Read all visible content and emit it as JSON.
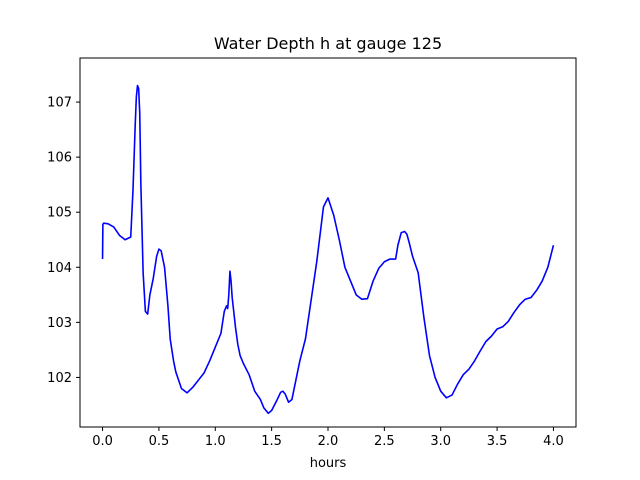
{
  "chart_data": {
    "type": "line",
    "title": "Water Depth h at gauge 125",
    "xlabel": "hours",
    "ylabel": "",
    "xlim": [
      -0.2,
      4.2
    ],
    "ylim": [
      101.1,
      107.8
    ],
    "x_ticks": [
      0.0,
      0.5,
      1.0,
      1.5,
      2.0,
      2.5,
      3.0,
      3.5,
      4.0
    ],
    "x_tick_labels": [
      "0.0",
      "0.5",
      "1.0",
      "1.5",
      "2.0",
      "2.5",
      "3.0",
      "3.5",
      "4.0"
    ],
    "y_ticks": [
      102,
      103,
      104,
      105,
      106,
      107
    ],
    "y_tick_labels": [
      "102",
      "103",
      "104",
      "105",
      "106",
      "107"
    ],
    "grid": false,
    "legend": "none",
    "series": [
      {
        "color": "#0000ff",
        "x": [
          0.0,
          0.003,
          0.01,
          0.05,
          0.1,
          0.15,
          0.2,
          0.25,
          0.27,
          0.29,
          0.3,
          0.31,
          0.32,
          0.33,
          0.34,
          0.36,
          0.38,
          0.4,
          0.42,
          0.45,
          0.48,
          0.5,
          0.52,
          0.55,
          0.58,
          0.6,
          0.63,
          0.65,
          0.7,
          0.75,
          0.8,
          0.85,
          0.9,
          0.95,
          1.0,
          1.05,
          1.08,
          1.1,
          1.11,
          1.12,
          1.13,
          1.14,
          1.15,
          1.18,
          1.2,
          1.22,
          1.25,
          1.3,
          1.35,
          1.4,
          1.43,
          1.45,
          1.47,
          1.5,
          1.55,
          1.58,
          1.6,
          1.62,
          1.65,
          1.68,
          1.7,
          1.75,
          1.8,
          1.85,
          1.9,
          1.93,
          1.96,
          2.0,
          2.05,
          2.1,
          2.15,
          2.2,
          2.25,
          2.3,
          2.35,
          2.4,
          2.45,
          2.5,
          2.55,
          2.58,
          2.6,
          2.62,
          2.65,
          2.68,
          2.7,
          2.72,
          2.75,
          2.8,
          2.85,
          2.9,
          2.95,
          3.0,
          3.05,
          3.1,
          3.15,
          3.2,
          3.25,
          3.3,
          3.35,
          3.4,
          3.45,
          3.5,
          3.55,
          3.6,
          3.65,
          3.7,
          3.75,
          3.8,
          3.85,
          3.9,
          3.95,
          4.0
        ],
        "y": [
          104.15,
          104.78,
          104.8,
          104.79,
          104.73,
          104.58,
          104.5,
          104.55,
          105.4,
          106.6,
          107.1,
          107.3,
          107.25,
          106.8,
          105.5,
          103.9,
          103.2,
          103.15,
          103.5,
          103.8,
          104.2,
          104.33,
          104.3,
          104.0,
          103.3,
          102.7,
          102.3,
          102.1,
          101.8,
          101.72,
          101.82,
          101.95,
          102.08,
          102.3,
          102.55,
          102.8,
          103.2,
          103.3,
          103.25,
          103.5,
          103.93,
          103.75,
          103.45,
          102.9,
          102.6,
          102.4,
          102.25,
          102.05,
          101.75,
          101.6,
          101.45,
          101.4,
          101.35,
          101.4,
          101.6,
          101.73,
          101.75,
          101.7,
          101.55,
          101.6,
          101.8,
          102.3,
          102.7,
          103.4,
          104.1,
          104.6,
          105.1,
          105.26,
          104.95,
          104.5,
          104.0,
          103.75,
          103.5,
          103.42,
          103.43,
          103.75,
          103.98,
          104.1,
          104.15,
          104.15,
          104.15,
          104.4,
          104.63,
          104.65,
          104.6,
          104.45,
          104.2,
          103.9,
          103.1,
          102.4,
          102.0,
          101.75,
          101.63,
          101.68,
          101.88,
          102.05,
          102.15,
          102.3,
          102.48,
          102.65,
          102.75,
          102.88,
          102.92,
          103.02,
          103.18,
          103.32,
          103.42,
          103.45,
          103.58,
          103.75,
          104.0,
          104.4
        ]
      }
    ]
  }
}
